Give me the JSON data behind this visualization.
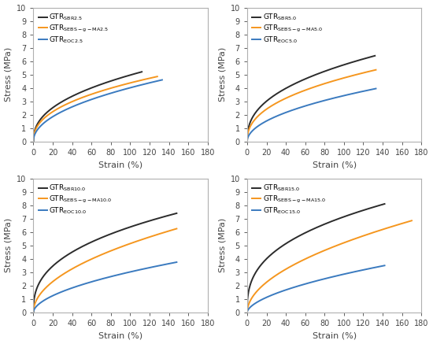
{
  "subplots": [
    {
      "label": "top-left",
      "legend_subs": [
        "SBR2.5",
        "SEBS-g-MA2.5",
        "EOC2.5"
      ],
      "curves": [
        {
          "color": "#2b2b2b",
          "x_end": 112,
          "y_end": 5.2,
          "alpha": 3.0,
          "power": 0.42
        },
        {
          "color": "#f5961e",
          "x_end": 128,
          "y_end": 4.85,
          "alpha": 3.0,
          "power": 0.42
        },
        {
          "color": "#3a7abf",
          "x_end": 133,
          "y_end": 4.6,
          "alpha": 2.5,
          "power": 0.48
        }
      ]
    },
    {
      "label": "top-right",
      "legend_subs": [
        "SBR5.0",
        "SEBS-g-MA5.0",
        "EOC5.0"
      ],
      "curves": [
        {
          "color": "#2b2b2b",
          "x_end": 132,
          "y_end": 6.4,
          "alpha": 3.5,
          "power": 0.4
        },
        {
          "color": "#f5961e",
          "x_end": 133,
          "y_end": 5.35,
          "alpha": 3.5,
          "power": 0.42
        },
        {
          "color": "#3a7abf",
          "x_end": 133,
          "y_end": 3.95,
          "alpha": 2.5,
          "power": 0.5
        }
      ]
    },
    {
      "label": "bottom-left",
      "legend_subs": [
        "SBR10.0",
        "SEBS-g-MA10.0",
        "EOC10.0"
      ],
      "curves": [
        {
          "color": "#2b2b2b",
          "x_end": 148,
          "y_end": 7.4,
          "alpha": 4.5,
          "power": 0.38
        },
        {
          "color": "#f5961e",
          "x_end": 148,
          "y_end": 6.25,
          "alpha": 4.0,
          "power": 0.5
        },
        {
          "color": "#3a7abf",
          "x_end": 148,
          "y_end": 3.75,
          "alpha": 2.5,
          "power": 0.55
        }
      ]
    },
    {
      "label": "bottom-right",
      "legend_subs": [
        "SBR15.0",
        "SEBS-g-MA15.0",
        "EOC15.0"
      ],
      "curves": [
        {
          "color": "#2b2b2b",
          "x_end": 142,
          "y_end": 8.1,
          "alpha": 5.0,
          "power": 0.36
        },
        {
          "color": "#f5961e",
          "x_end": 170,
          "y_end": 6.85,
          "alpha": 4.5,
          "power": 0.52
        },
        {
          "color": "#3a7abf",
          "x_end": 142,
          "y_end": 3.5,
          "alpha": 2.5,
          "power": 0.58
        }
      ]
    }
  ],
  "xlim": [
    0,
    180
  ],
  "ylim": [
    0,
    10
  ],
  "xticks": [
    0,
    20,
    40,
    60,
    80,
    100,
    120,
    140,
    160,
    180
  ],
  "yticks": [
    0,
    1,
    2,
    3,
    4,
    5,
    6,
    7,
    8,
    9,
    10
  ],
  "xlabel": "Strain (%)",
  "ylabel": "Stress (MPa)",
  "linewidth": 1.4,
  "legend_fontsize": 6.5,
  "axis_fontsize": 8,
  "tick_fontsize": 7,
  "spine_color": "#b0b0b0",
  "tick_color": "#444444"
}
